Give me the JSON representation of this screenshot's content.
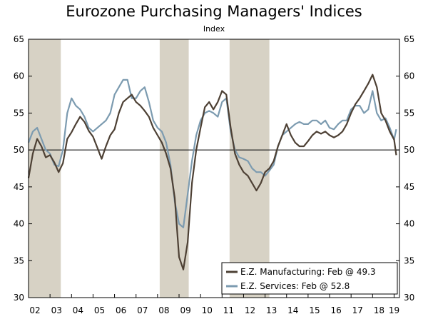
{
  "chart_data": {
    "type": "line",
    "title": "Eurozone Purchasing Managers' Indices",
    "subtitle": "Index",
    "ylim": [
      30,
      65
    ],
    "yticks": [
      30,
      35,
      40,
      45,
      50,
      55,
      60,
      65
    ],
    "xlim": [
      2002.0,
      2019.25
    ],
    "xtick_labels": [
      "02",
      "03",
      "04",
      "05",
      "06",
      "07",
      "08",
      "09",
      "10",
      "11",
      "12",
      "13",
      "14",
      "15",
      "16",
      "17",
      "18",
      "19"
    ],
    "reference_line": 50,
    "recession_shading": [
      [
        2002.0,
        2003.5
      ],
      [
        2008.1,
        2009.45
      ],
      [
        2011.35,
        2013.2
      ]
    ],
    "colors": {
      "manufacturing": "#4d4034",
      "services": "#7c9bb0",
      "shading": "#d7d2c5",
      "axis": "#000000"
    },
    "series": [
      {
        "name": "E.Z. Manufacturing: Feb @ 49.3",
        "x": [
          2002.0,
          2002.2,
          2002.4,
          2002.6,
          2002.8,
          2003.0,
          2003.2,
          2003.4,
          2003.6,
          2003.8,
          2004.0,
          2004.2,
          2004.4,
          2004.6,
          2004.8,
          2005.0,
          2005.2,
          2005.4,
          2005.6,
          2005.8,
          2006.0,
          2006.2,
          2006.4,
          2006.6,
          2006.8,
          2007.0,
          2007.2,
          2007.4,
          2007.6,
          2007.8,
          2008.0,
          2008.2,
          2008.4,
          2008.6,
          2008.8,
          2009.0,
          2009.2,
          2009.4,
          2009.6,
          2009.8,
          2010.0,
          2010.2,
          2010.4,
          2010.6,
          2010.8,
          2011.0,
          2011.2,
          2011.4,
          2011.6,
          2011.8,
          2012.0,
          2012.2,
          2012.4,
          2012.6,
          2012.8,
          2013.0,
          2013.2,
          2013.4,
          2013.6,
          2013.8,
          2014.0,
          2014.2,
          2014.4,
          2014.6,
          2014.8,
          2015.0,
          2015.2,
          2015.4,
          2015.6,
          2015.8,
          2016.0,
          2016.2,
          2016.4,
          2016.6,
          2016.8,
          2017.0,
          2017.2,
          2017.4,
          2017.6,
          2017.8,
          2018.0,
          2018.2,
          2018.4,
          2018.6,
          2018.8,
          2019.0,
          2019.1
        ],
        "values": [
          46.2,
          49.5,
          51.5,
          50.5,
          49.0,
          49.3,
          48.3,
          47.0,
          48.2,
          51.5,
          52.4,
          53.5,
          54.5,
          53.8,
          52.6,
          51.8,
          50.3,
          48.8,
          50.5,
          52.0,
          52.8,
          55.0,
          56.5,
          57.0,
          57.5,
          56.5,
          56.0,
          55.3,
          54.5,
          53.0,
          52.0,
          51.0,
          49.5,
          47.5,
          43.5,
          35.5,
          33.8,
          37.5,
          45.5,
          50.0,
          53.0,
          55.8,
          56.5,
          55.5,
          56.5,
          58.0,
          57.5,
          53.0,
          49.5,
          48.0,
          47.0,
          46.5,
          45.5,
          44.5,
          45.5,
          47.0,
          47.5,
          48.5,
          50.5,
          52.0,
          53.5,
          52.0,
          51.0,
          50.5,
          50.5,
          51.2,
          52.0,
          52.5,
          52.2,
          52.5,
          52.0,
          51.7,
          52.0,
          52.5,
          53.5,
          55.0,
          56.2,
          57.0,
          58.0,
          59.0,
          60.2,
          58.5,
          55.0,
          54.0,
          52.5,
          51.4,
          49.3
        ]
      },
      {
        "name": "E.Z. Services: Feb @ 52.8",
        "x": [
          2002.0,
          2002.2,
          2002.4,
          2002.6,
          2002.8,
          2003.0,
          2003.2,
          2003.4,
          2003.6,
          2003.8,
          2004.0,
          2004.2,
          2004.4,
          2004.6,
          2004.8,
          2005.0,
          2005.2,
          2005.4,
          2005.6,
          2005.8,
          2006.0,
          2006.2,
          2006.4,
          2006.6,
          2006.8,
          2007.0,
          2007.2,
          2007.4,
          2007.6,
          2007.8,
          2008.0,
          2008.2,
          2008.4,
          2008.6,
          2008.8,
          2009.0,
          2009.2,
          2009.4,
          2009.6,
          2009.8,
          2010.0,
          2010.2,
          2010.4,
          2010.6,
          2010.8,
          2011.0,
          2011.2,
          2011.4,
          2011.6,
          2011.8,
          2012.0,
          2012.2,
          2012.4,
          2012.6,
          2012.8,
          2013.0,
          2013.2,
          2013.4,
          2013.6,
          2013.8,
          2014.0,
          2014.2,
          2014.4,
          2014.6,
          2014.8,
          2015.0,
          2015.2,
          2015.4,
          2015.6,
          2015.8,
          2016.0,
          2016.2,
          2016.4,
          2016.6,
          2016.8,
          2017.0,
          2017.2,
          2017.4,
          2017.6,
          2017.8,
          2018.0,
          2018.2,
          2018.4,
          2018.6,
          2018.8,
          2019.0,
          2019.1
        ],
        "values": [
          51.0,
          52.5,
          53.0,
          51.5,
          50.0,
          49.5,
          48.0,
          47.8,
          50.0,
          55.0,
          57.0,
          56.0,
          55.5,
          54.5,
          53.0,
          52.5,
          53.0,
          53.5,
          54.0,
          55.0,
          57.5,
          58.5,
          59.5,
          59.5,
          57.0,
          57.0,
          58.0,
          58.5,
          56.5,
          54.0,
          53.0,
          52.5,
          51.0,
          48.0,
          43.0,
          40.0,
          39.5,
          44.0,
          48.5,
          52.0,
          54.0,
          55.0,
          55.3,
          55.0,
          54.5,
          56.5,
          57.0,
          52.5,
          50.0,
          49.0,
          48.8,
          48.5,
          47.5,
          47.0,
          47.0,
          46.5,
          47.2,
          48.0,
          50.5,
          52.0,
          52.5,
          53.0,
          53.5,
          53.8,
          53.5,
          53.5,
          54.0,
          54.0,
          53.5,
          54.0,
          53.0,
          52.8,
          53.5,
          54.0,
          54.0,
          55.5,
          56.0,
          56.0,
          55.0,
          55.5,
          58.0,
          55.0,
          54.0,
          54.3,
          53.0,
          51.4,
          52.8
        ]
      }
    ]
  }
}
